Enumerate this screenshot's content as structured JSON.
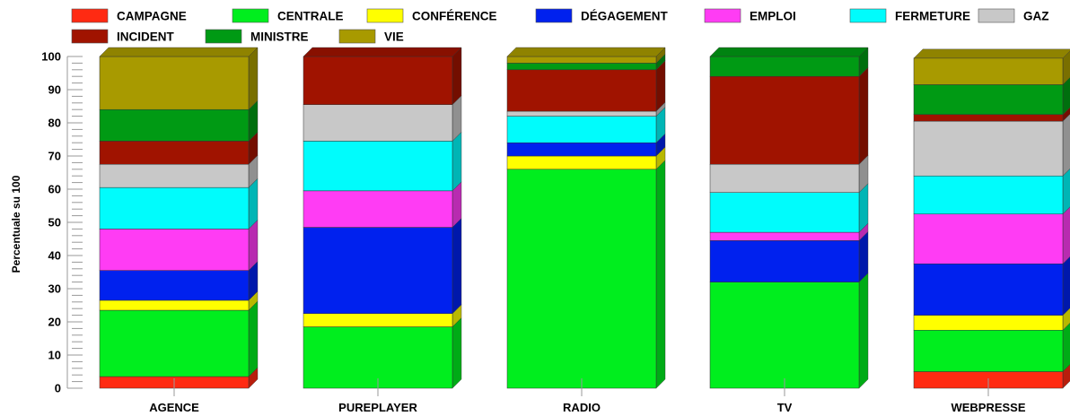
{
  "chart_data": {
    "type": "bar",
    "stacked": true,
    "ylabel": "Percentuale su 100",
    "xlabel": "",
    "ylim": [
      0,
      100
    ],
    "yticks": [
      "0",
      "10",
      "20",
      "30",
      "40",
      "50",
      "60",
      "70",
      "80",
      "90",
      "100"
    ],
    "legend_position": "top",
    "categories": [
      "AGENCE",
      "PUREPLAYER",
      "RADIO",
      "TV",
      "WEBPRESSE"
    ],
    "series": [
      {
        "name": "CAMPAGNE",
        "color": "#ff2a12",
        "values": [
          3.5,
          0,
          0,
          0,
          5
        ]
      },
      {
        "name": "CENTRALE",
        "color": "#00ee1e",
        "values": [
          20,
          18.5,
          66,
          32,
          12.5
        ]
      },
      {
        "name": "CONFÉRENCE",
        "color": "#ffff00",
        "values": [
          3,
          4,
          4,
          0,
          4.5
        ]
      },
      {
        "name": "DÉGAGEMENT",
        "color": "#0021ee",
        "values": [
          9,
          26,
          4,
          12.5,
          15.5
        ]
      },
      {
        "name": "EMPLOI",
        "color": "#ff3cf4",
        "values": [
          12.5,
          11,
          0,
          2.5,
          15
        ]
      },
      {
        "name": "FERMETURE",
        "color": "#00fcfc",
        "values": [
          12.5,
          15,
          8,
          12,
          11.5
        ]
      },
      {
        "name": "GAZ",
        "color": "#c8c8c8",
        "values": [
          7,
          11,
          1.5,
          8.5,
          16.5
        ]
      },
      {
        "name": "INCIDENT",
        "color": "#a01300",
        "values": [
          7,
          14.5,
          12.5,
          26.5,
          2
        ]
      },
      {
        "name": "MINISTRE",
        "color": "#009a14",
        "values": [
          9.5,
          0,
          2,
          6,
          9
        ]
      },
      {
        "name": "VIE",
        "color": "#a89a00",
        "values": [
          16,
          0,
          2,
          0,
          8
        ]
      }
    ]
  }
}
